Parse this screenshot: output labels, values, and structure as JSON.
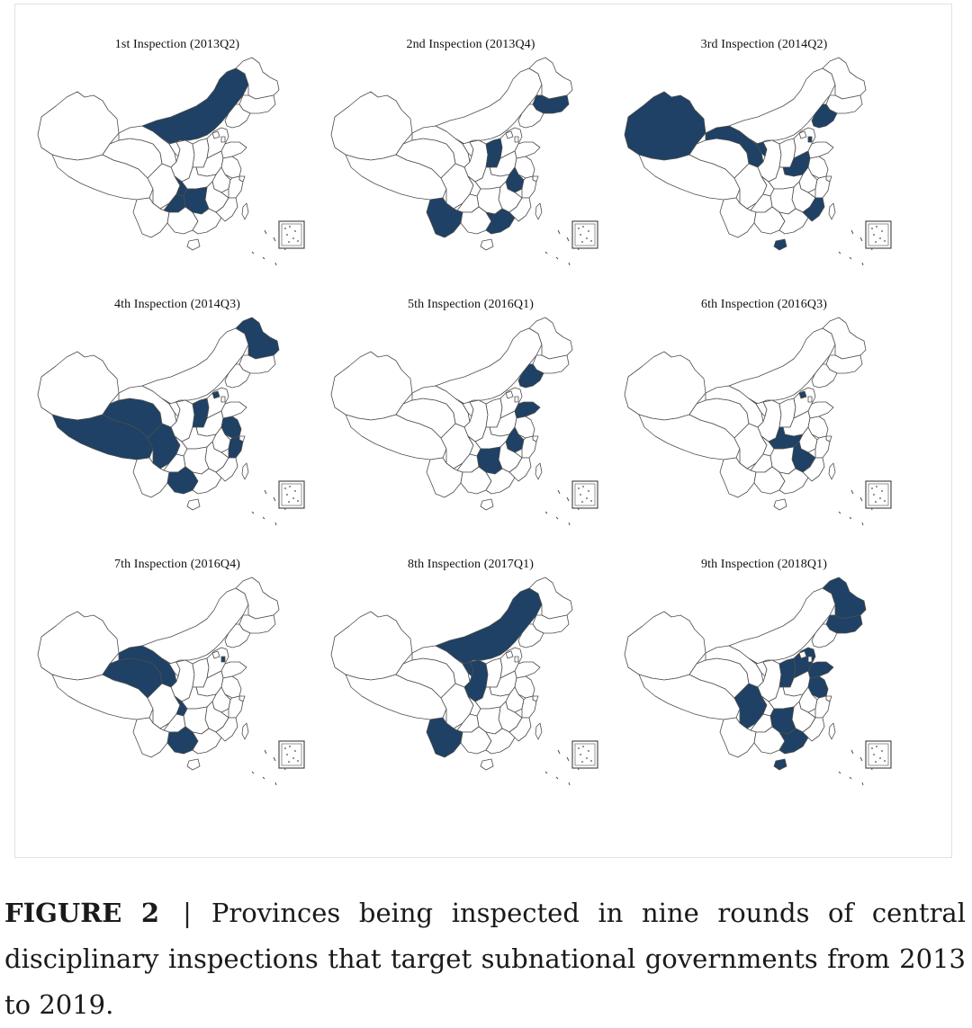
{
  "figure": {
    "panels": [
      {
        "title": "1st Inspection (2013Q2)",
        "inspected": [
          "inner-mongolia",
          "chongqing",
          "guizhou",
          "hunan"
        ]
      },
      {
        "title": "2nd Inspection (2013Q4)",
        "inspected": [
          "jilin",
          "shanxi",
          "anhui",
          "yunnan",
          "guangdong"
        ]
      },
      {
        "title": "3rd Inspection (2014Q2)",
        "inspected": [
          "xinjiang",
          "gansu",
          "ningxia",
          "liaoning",
          "tianjin",
          "henan",
          "fujian",
          "hainan"
        ]
      },
      {
        "title": "4th Inspection (2014Q3)",
        "inspected": [
          "heilongjiang",
          "tibet",
          "qinghai",
          "sichuan",
          "beijing",
          "shanxi",
          "jiangsu",
          "zhejiang",
          "guangxi"
        ]
      },
      {
        "title": "5th Inspection (2016Q1)",
        "inspected": [
          "liaoning",
          "shandong",
          "anhui",
          "hunan"
        ]
      },
      {
        "title": "6th Inspection (2016Q3)",
        "inspected": [
          "beijing",
          "hubei",
          "jiangxi"
        ]
      },
      {
        "title": "7th Inspection (2016Q4)",
        "inspected": [
          "qinghai",
          "gansu",
          "tianjin",
          "chongqing",
          "guangxi"
        ]
      },
      {
        "title": "8th Inspection (2017Q1)",
        "inspected": [
          "inner-mongolia",
          "ningxia",
          "shaanxi",
          "yunnan"
        ]
      },
      {
        "title": "9th Inspection (2018Q1)",
        "inspected": [
          "heilongjiang",
          "jilin",
          "hebei",
          "shanxi",
          "shandong",
          "jiangsu",
          "sichuan",
          "hunan",
          "guangdong",
          "hainan"
        ]
      }
    ]
  },
  "caption": {
    "label": "FIGURE 2",
    "separator": "|",
    "text": "Provinces being inspected in nine rounds of central disciplinary inspections that target subnational governments from 2013 to 2019."
  },
  "colors": {
    "inspected_fill": "#1e4165",
    "border_stroke": "#4d4d4d",
    "background": "#ffffff"
  }
}
